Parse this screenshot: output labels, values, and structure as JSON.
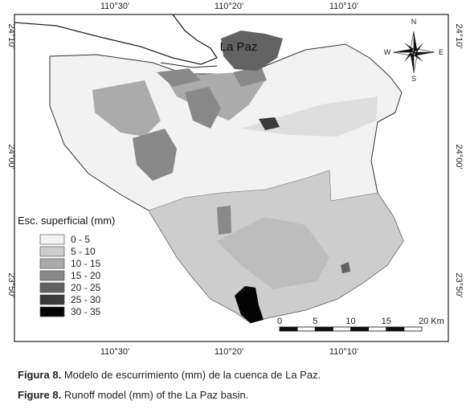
{
  "map": {
    "place_label": "La Paz",
    "top_ticks": [
      "110°30'",
      "110°20'",
      "110°10'"
    ],
    "bottom_ticks": [
      "110°30'",
      "110°20'",
      "110°10'"
    ],
    "left_ticks": [
      "24°10'",
      "24°00'",
      "23°50'"
    ],
    "right_ticks": [
      "24°10'",
      "24°00'",
      "23°50'"
    ],
    "compass": {
      "n": "N",
      "s": "S",
      "e": "E",
      "w": "W"
    },
    "legend": {
      "title": "Esc. superficial (mm)",
      "classes": [
        "0 - 5",
        "5 - 10",
        "10 - 15",
        "15 - 20",
        "20 - 25",
        "25 - 30",
        "30 - 35"
      ],
      "colors": [
        "#f2f2f2",
        "#cdcdcd",
        "#ababab",
        "#898989",
        "#626262",
        "#3a3a3a",
        "#050505"
      ]
    },
    "scale_bar": {
      "labels": [
        "0",
        "5",
        "10",
        "15",
        "20 Km"
      ]
    }
  },
  "caption": [
    {
      "label": "Figura 8.",
      "text": "Modelo de escurrimiento (mm) de la cuenca de La Paz."
    },
    {
      "label": "Figure 8.",
      "text": "Runoff model (mm) of the La Paz basin."
    }
  ]
}
